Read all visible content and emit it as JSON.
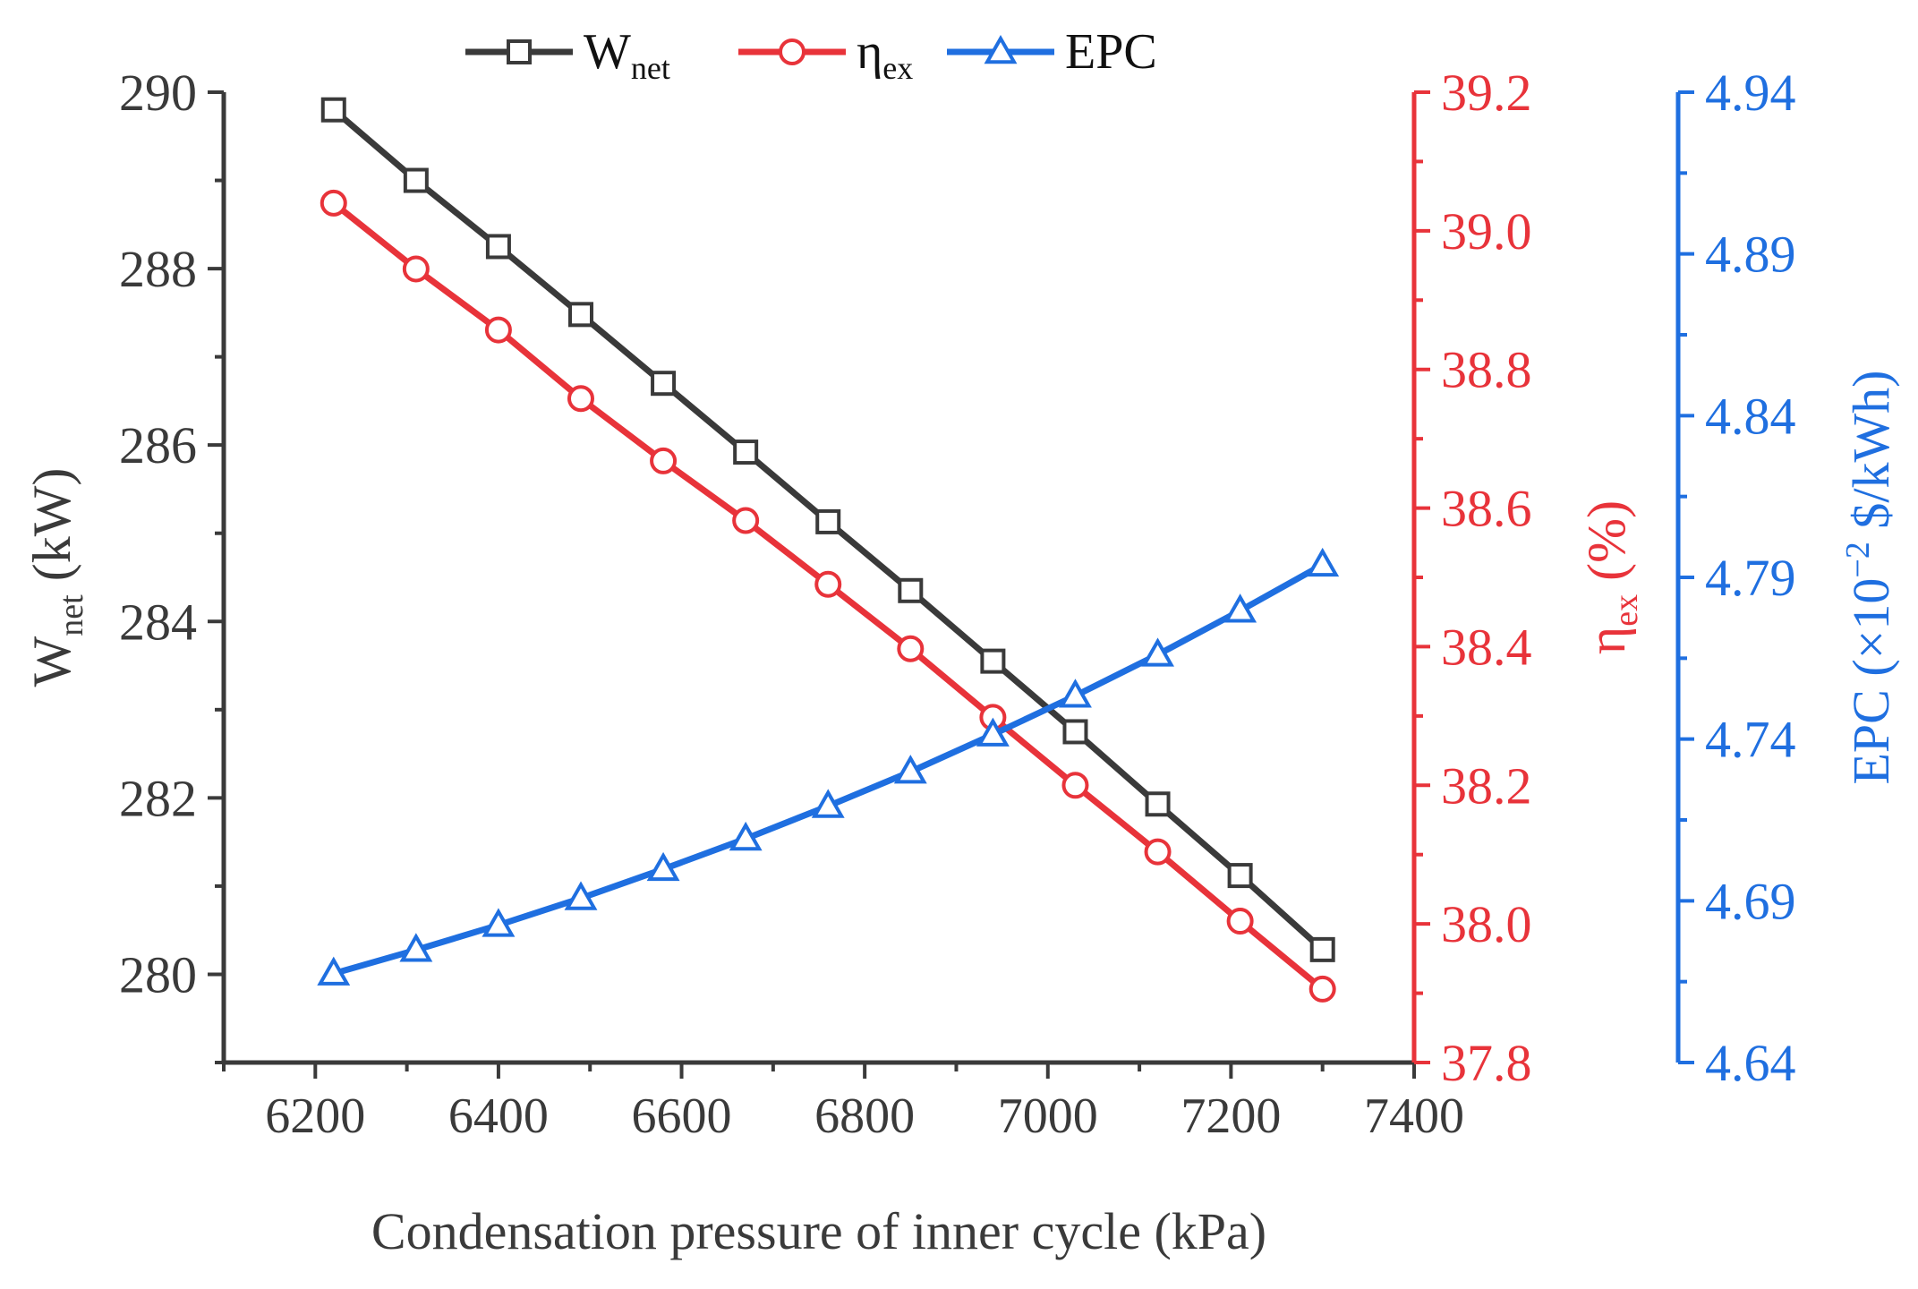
{
  "chart_data": {
    "type": "line",
    "x": [
      6220,
      6310,
      6400,
      6490,
      6580,
      6670,
      6760,
      6850,
      6940,
      7030,
      7120,
      7210,
      7300
    ],
    "xlabel": "Condensation pressure of inner cycle (kPa)",
    "xlim": [
      6100,
      7400
    ],
    "xticks": [
      6200,
      6400,
      6600,
      6800,
      7000,
      7200,
      7400
    ],
    "axes": {
      "left": {
        "label_main": "W",
        "label_sub": "net",
        "label_rest": " (kW)",
        "ylim": [
          279,
          290
        ],
        "ticks": [
          280,
          282,
          284,
          286,
          288,
          290
        ],
        "color": "#3a3a3a"
      },
      "right1": {
        "label_main": "η",
        "label_sub": "ex",
        "label_rest": " (%)",
        "ylim": [
          37.8,
          39.2
        ],
        "ticks": [
          "37.8",
          "38.0",
          "38.2",
          "38.4",
          "38.6",
          "38.8",
          "39.0",
          "39.2"
        ],
        "color": "#e8333a"
      },
      "right2": {
        "label_pre": "EPC (×10",
        "label_sup": "−2",
        "label_rest": " $/kWh)",
        "ylim": [
          4.64,
          4.94
        ],
        "ticks": [
          "4.64",
          "4.69",
          "4.74",
          "4.79",
          "4.84",
          "4.89",
          "4.94"
        ],
        "color": "#1f6fe0"
      }
    },
    "series": [
      {
        "name": "Wnet",
        "legend_main": "W",
        "legend_sub": "net",
        "axis": "left",
        "marker": "square",
        "color": "#3a3a3a",
        "values": [
          289.8,
          289.0,
          288.25,
          287.48,
          286.7,
          285.92,
          285.13,
          284.35,
          283.55,
          282.75,
          281.93,
          281.12,
          280.28
        ]
      },
      {
        "name": "ηex",
        "legend_main": "η",
        "legend_sub": "ex",
        "axis": "right1",
        "marker": "circle",
        "color": "#e8333a",
        "values": [
          39.04,
          38.945,
          38.857,
          38.758,
          38.668,
          38.582,
          38.49,
          38.397,
          38.298,
          38.2,
          38.104,
          38.004,
          37.906
        ]
      },
      {
        "name": "EPC",
        "legend_main": "EPC",
        "legend_sub": "",
        "axis": "right2",
        "marker": "triangle",
        "color": "#1f6fe0",
        "values": [
          4.6675,
          4.6748,
          4.6825,
          4.6908,
          4.6998,
          4.7092,
          4.7193,
          4.7299,
          4.7414,
          4.7534,
          4.7661,
          4.7797,
          4.7939
        ]
      }
    ],
    "legend_position": "top"
  }
}
